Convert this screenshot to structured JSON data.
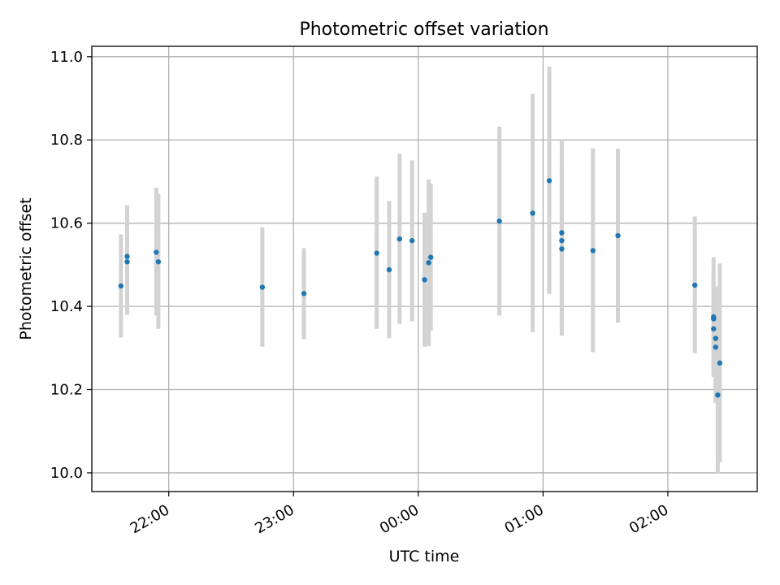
{
  "chart_data": {
    "type": "scatter",
    "title": "Photometric offset variation",
    "xlabel": "UTC time",
    "ylabel": "Photometric offset",
    "x_ticks": [
      "22:00",
      "23:00",
      "00:00",
      "01:00",
      "02:00"
    ],
    "y_ticks": [
      "10.0",
      "10.2",
      "10.4",
      "10.6",
      "10.8",
      "11.0"
    ],
    "xlim": [
      "21:23",
      "02:43"
    ],
    "ylim": [
      9.955,
      11.025
    ],
    "grid": true,
    "colors": {
      "points": "#1f77b4",
      "errorbars": "#d3d3d3",
      "grid": "#b0b0b0"
    },
    "points": [
      {
        "t": "21:37",
        "y": 10.449,
        "lo": 10.325,
        "hi": 10.573
      },
      {
        "t": "21:40",
        "y": 10.52,
        "lo": 10.38,
        "hi": 10.643
      },
      {
        "t": "21:40",
        "y": 10.507,
        "lo": 10.395,
        "hi": 10.62
      },
      {
        "t": "21:54",
        "y": 10.53,
        "lo": 10.378,
        "hi": 10.685
      },
      {
        "t": "21:55",
        "y": 10.507,
        "lo": 10.346,
        "hi": 10.67
      },
      {
        "t": "22:45",
        "y": 10.446,
        "lo": 10.303,
        "hi": 10.59
      },
      {
        "t": "23:05",
        "y": 10.431,
        "lo": 10.321,
        "hi": 10.54
      },
      {
        "t": "23:40",
        "y": 10.528,
        "lo": 10.346,
        "hi": 10.712
      },
      {
        "t": "23:46",
        "y": 10.488,
        "lo": 10.323,
        "hi": 10.653
      },
      {
        "t": "23:51",
        "y": 10.562,
        "lo": 10.358,
        "hi": 10.767
      },
      {
        "t": "23:57",
        "y": 10.558,
        "lo": 10.364,
        "hi": 10.751
      },
      {
        "t": "00:03",
        "y": 10.464,
        "lo": 10.303,
        "hi": 10.625
      },
      {
        "t": "00:05",
        "y": 10.505,
        "lo": 10.305,
        "hi": 10.705
      },
      {
        "t": "00:06",
        "y": 10.518,
        "lo": 10.341,
        "hi": 10.695
      },
      {
        "t": "00:39",
        "y": 10.605,
        "lo": 10.378,
        "hi": 10.832
      },
      {
        "t": "00:55",
        "y": 10.624,
        "lo": 10.338,
        "hi": 10.911
      },
      {
        "t": "01:03",
        "y": 10.702,
        "lo": 10.43,
        "hi": 10.976
      },
      {
        "t": "01:09",
        "y": 10.577,
        "lo": 10.355,
        "hi": 10.8
      },
      {
        "t": "01:09",
        "y": 10.558,
        "lo": 10.33,
        "hi": 10.787
      },
      {
        "t": "01:09",
        "y": 10.538,
        "lo": 10.34,
        "hi": 10.735
      },
      {
        "t": "01:24",
        "y": 10.534,
        "lo": 10.29,
        "hi": 10.78
      },
      {
        "t": "01:36",
        "y": 10.57,
        "lo": 10.361,
        "hi": 10.779
      },
      {
        "t": "02:13",
        "y": 10.451,
        "lo": 10.288,
        "hi": 10.616
      },
      {
        "t": "02:22",
        "y": 10.375,
        "lo": 10.236,
        "hi": 10.518
      },
      {
        "t": "02:22",
        "y": 10.37,
        "lo": 10.25,
        "hi": 10.49
      },
      {
        "t": "02:22",
        "y": 10.346,
        "lo": 10.23,
        "hi": 10.462
      },
      {
        "t": "02:23",
        "y": 10.323,
        "lo": 10.198,
        "hi": 10.448
      },
      {
        "t": "02:23",
        "y": 10.302,
        "lo": 10.168,
        "hi": 10.437
      },
      {
        "t": "02:24",
        "y": 10.187,
        "lo": 10.0,
        "hi": 10.374
      },
      {
        "t": "02:25",
        "y": 10.264,
        "lo": 10.025,
        "hi": 10.503
      }
    ]
  }
}
